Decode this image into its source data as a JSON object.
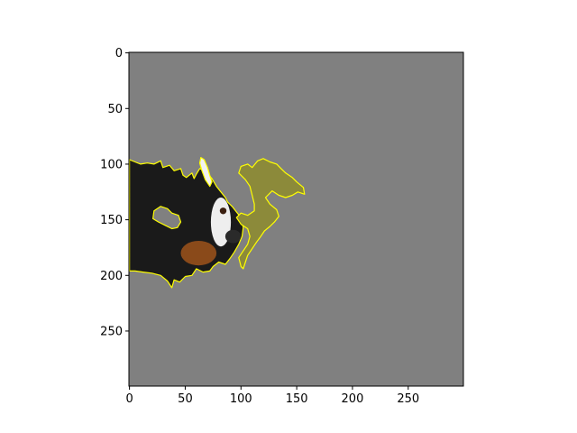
{
  "chart_data": {
    "type": "image",
    "title": "",
    "xlabel": "",
    "ylabel": "",
    "xlim": [
      -0.5,
      299.5
    ],
    "ylim": [
      299.5,
      -0.5
    ],
    "x_ticks": [
      0,
      50,
      100,
      150,
      200,
      250
    ],
    "y_ticks": [
      0,
      50,
      100,
      150,
      200,
      250
    ],
    "grid": false,
    "background_color": "#808080",
    "boundary_color": "#ffff00",
    "image_content": "dog-face-superpixel-explanation",
    "regions": [
      {
        "name": "dog-head-region",
        "color": "#1a1a1a",
        "outline": [
          [
            0,
            96
          ],
          [
            5,
            98
          ],
          [
            10,
            100
          ],
          [
            16,
            99
          ],
          [
            22,
            100
          ],
          [
            28,
            97
          ],
          [
            30,
            103
          ],
          [
            36,
            101
          ],
          [
            40,
            106
          ],
          [
            46,
            104
          ],
          [
            48,
            110
          ],
          [
            51,
            112
          ],
          [
            56,
            108
          ],
          [
            58,
            113
          ],
          [
            60,
            109
          ],
          [
            63,
            104
          ],
          [
            68,
            106
          ],
          [
            74,
            113
          ],
          [
            78,
            120
          ],
          [
            82,
            125
          ],
          [
            86,
            130
          ],
          [
            88,
            134
          ],
          [
            92,
            138
          ],
          [
            96,
            143
          ],
          [
            100,
            148
          ],
          [
            102,
            157
          ],
          [
            101,
            165
          ],
          [
            98,
            172
          ],
          [
            94,
            179
          ],
          [
            90,
            185
          ],
          [
            86,
            190
          ],
          [
            80,
            188
          ],
          [
            75,
            192
          ],
          [
            72,
            196
          ],
          [
            66,
            197
          ],
          [
            60,
            194
          ],
          [
            56,
            200
          ],
          [
            50,
            201
          ],
          [
            45,
            206
          ],
          [
            40,
            204
          ],
          [
            38,
            211
          ],
          [
            34,
            205
          ],
          [
            28,
            200
          ],
          [
            20,
            198
          ],
          [
            12,
            197
          ],
          [
            5,
            196
          ],
          [
            0,
            196
          ],
          [
            0,
            160
          ],
          [
            0,
            130
          ]
        ]
      },
      {
        "name": "white-strip-region",
        "color": "#f2f2f2",
        "outline": [
          [
            64,
            94
          ],
          [
            67,
            96
          ],
          [
            70,
            103
          ],
          [
            72,
            110
          ],
          [
            74,
            116
          ],
          [
            72,
            120
          ],
          [
            68,
            114
          ],
          [
            65,
            106
          ],
          [
            63,
            99
          ]
        ]
      },
      {
        "name": "grass-region",
        "color": "#8c8a3a",
        "outline": [
          [
            98,
            108
          ],
          [
            100,
            102
          ],
          [
            106,
            100
          ],
          [
            110,
            103
          ],
          [
            115,
            97
          ],
          [
            120,
            95
          ],
          [
            126,
            98
          ],
          [
            132,
            100
          ],
          [
            136,
            104
          ],
          [
            140,
            108
          ],
          [
            146,
            112
          ],
          [
            150,
            116
          ],
          [
            156,
            121
          ],
          [
            157,
            127
          ],
          [
            151,
            125
          ],
          [
            146,
            128
          ],
          [
            140,
            130
          ],
          [
            134,
            128
          ],
          [
            128,
            124
          ],
          [
            122,
            130
          ],
          [
            126,
            136
          ],
          [
            132,
            141
          ],
          [
            134,
            147
          ],
          [
            130,
            152
          ],
          [
            126,
            156
          ],
          [
            121,
            160
          ],
          [
            117,
            166
          ],
          [
            114,
            170
          ],
          [
            110,
            176
          ],
          [
            106,
            182
          ],
          [
            104,
            188
          ],
          [
            102,
            194
          ],
          [
            100,
            192
          ],
          [
            98,
            184
          ],
          [
            102,
            178
          ],
          [
            106,
            172
          ],
          [
            108,
            165
          ],
          [
            106,
            158
          ],
          [
            100,
            154
          ],
          [
            96,
            148
          ],
          [
            100,
            144
          ],
          [
            106,
            146
          ],
          [
            112,
            142
          ],
          [
            112,
            136
          ],
          [
            110,
            128
          ],
          [
            108,
            120
          ],
          [
            104,
            114
          ]
        ]
      }
    ],
    "hole": {
      "name": "hole-region",
      "color": "#808080",
      "outline": [
        [
          22,
          142
        ],
        [
          28,
          138
        ],
        [
          34,
          140
        ],
        [
          38,
          144
        ],
        [
          44,
          146
        ],
        [
          46,
          152
        ],
        [
          43,
          157
        ],
        [
          38,
          158
        ],
        [
          32,
          155
        ],
        [
          26,
          152
        ],
        [
          21,
          149
        ]
      ]
    },
    "features": [
      {
        "name": "nose",
        "x": 93,
        "y": 165,
        "rx": 7,
        "ry": 6,
        "color": "#2a2a2a"
      },
      {
        "name": "eye",
        "x": 84,
        "y": 142,
        "rx": 3,
        "ry": 3,
        "color": "#3a1f10"
      }
    ]
  }
}
